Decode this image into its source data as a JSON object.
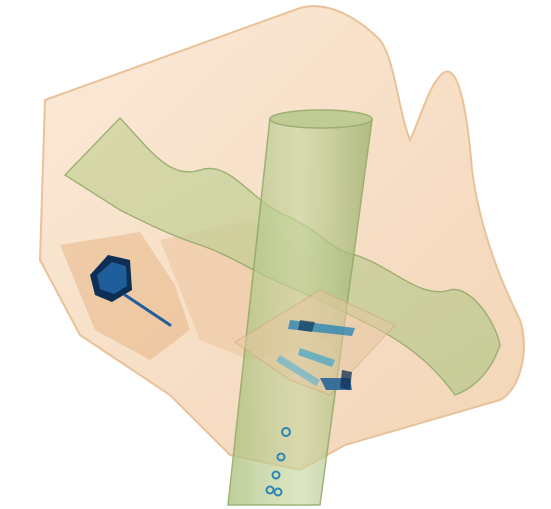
{
  "image": {
    "kind": "x-ray baggage scan (pseudo-color)",
    "palette": {
      "background": "#ffffff",
      "bag_fill": "#f6dcc2",
      "bag_edge": "#e9bf95",
      "organic_green": "#b7c98e",
      "organic_dark": "#8ea764",
      "metal_blue": "#1f5e9a",
      "metal_dark": "#0e2f55",
      "orange_shadow": "#e2ad78"
    },
    "objects": [
      {
        "name": "bag-outline",
        "material": "organic"
      },
      {
        "name": "wavy-strap",
        "material": "organic"
      },
      {
        "name": "cylinder-tube",
        "material": "organic"
      },
      {
        "name": "small-device-with-cable",
        "material": "metal"
      },
      {
        "name": "tray-with-tools",
        "material": "mixed"
      },
      {
        "name": "small-rings-chain",
        "material": "metal"
      }
    ]
  }
}
